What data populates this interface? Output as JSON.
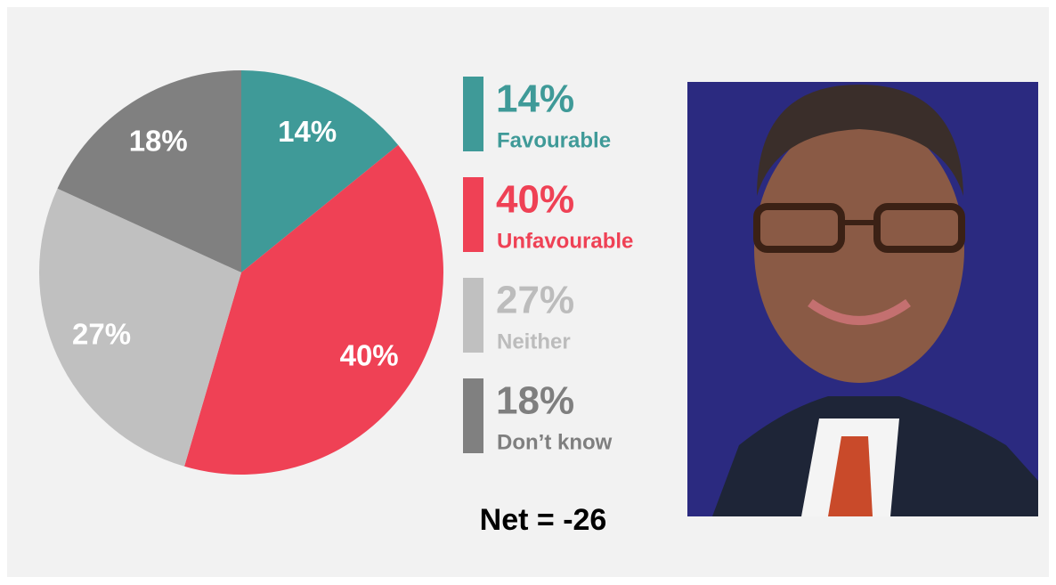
{
  "chart_data": {
    "type": "pie",
    "categories": [
      "Favourable",
      "Unfavourable",
      "Neither",
      "Don’t know"
    ],
    "values": [
      14,
      40,
      27,
      18
    ],
    "value_labels": [
      "14%",
      "40%",
      "27%",
      "18%"
    ],
    "colors": [
      "#3f9a98",
      "#ef4155",
      "#c0c0c0",
      "#808080"
    ],
    "legend_text_colors": [
      "#3f9a98",
      "#ef4155",
      "#bcbcbc",
      "#7f7f7f"
    ],
    "annotation": "Net = -26"
  }
}
